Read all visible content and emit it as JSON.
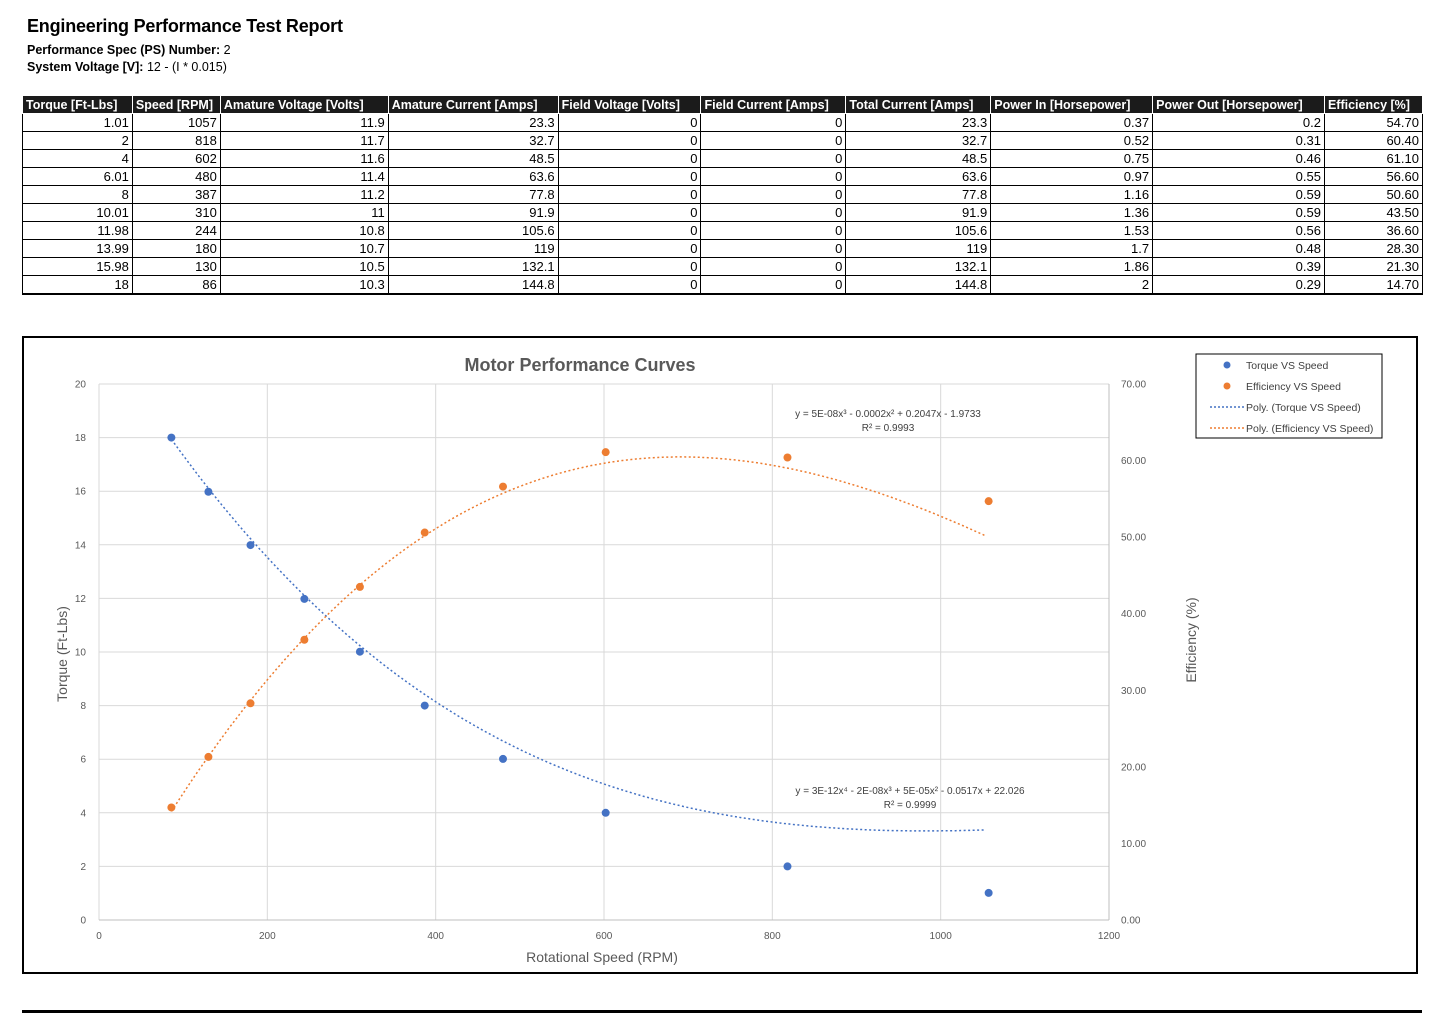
{
  "report": {
    "title": "Engineering Performance Test Report",
    "spec_label": "Performance Spec (PS) Number:",
    "spec_value": "2",
    "voltage_label": "System Voltage [V]:",
    "voltage_value": "12 - (I * 0.015)"
  },
  "table": {
    "headers": [
      "Torque [Ft-Lbs]",
      "Speed [RPM]",
      "Amature Voltage [Volts]",
      "Amature Current [Amps]",
      "Field Voltage [Volts]",
      "Field Current [Amps]",
      "Total Current [Amps]",
      "Power In [Horsepower]",
      "Power Out [Horsepower]",
      "Efficiency [%]"
    ],
    "rows": [
      [
        "1.01",
        "1057",
        "11.9",
        "23.3",
        "0",
        "0",
        "23.3",
        "0.37",
        "0.2",
        "54.70"
      ],
      [
        "2",
        "818",
        "11.7",
        "32.7",
        "0",
        "0",
        "32.7",
        "0.52",
        "0.31",
        "60.40"
      ],
      [
        "4",
        "602",
        "11.6",
        "48.5",
        "0",
        "0",
        "48.5",
        "0.75",
        "0.46",
        "61.10"
      ],
      [
        "6.01",
        "480",
        "11.4",
        "63.6",
        "0",
        "0",
        "63.6",
        "0.97",
        "0.55",
        "56.60"
      ],
      [
        "8",
        "387",
        "11.2",
        "77.8",
        "0",
        "0",
        "77.8",
        "1.16",
        "0.59",
        "50.60"
      ],
      [
        "10.01",
        "310",
        "11",
        "91.9",
        "0",
        "0",
        "91.9",
        "1.36",
        "0.59",
        "43.50"
      ],
      [
        "11.98",
        "244",
        "10.8",
        "105.6",
        "0",
        "0",
        "105.6",
        "1.53",
        "0.56",
        "36.60"
      ],
      [
        "13.99",
        "180",
        "10.7",
        "119",
        "0",
        "0",
        "119",
        "1.7",
        "0.48",
        "28.30"
      ],
      [
        "15.98",
        "130",
        "10.5",
        "132.1",
        "0",
        "0",
        "132.1",
        "1.86",
        "0.39",
        "21.30"
      ],
      [
        "18",
        "86",
        "10.3",
        "144.8",
        "0",
        "0",
        "144.8",
        "2",
        "0.29",
        "14.70"
      ]
    ]
  },
  "chart_data": {
    "type": "scatter",
    "title": "Motor Performance Curves",
    "xlabel": "Rotational Speed (RPM)",
    "ylabel": "Torque (Ft-Lbs)",
    "y2label": "Efficiency (%)",
    "xlim": [
      0,
      1200
    ],
    "ylim": [
      0,
      20
    ],
    "y2lim": [
      0,
      70
    ],
    "xticks": [
      0,
      200,
      400,
      600,
      800,
      1000,
      1200
    ],
    "yticks": [
      0,
      2,
      4,
      6,
      8,
      10,
      12,
      14,
      16,
      18,
      20
    ],
    "y2ticks": [
      "0.00",
      "10.00",
      "20.00",
      "30.00",
      "40.00",
      "50.00",
      "60.00",
      "70.00"
    ],
    "grid": true,
    "legend_position": "top-right",
    "series": [
      {
        "name": "Torque VS Speed",
        "axis": "left",
        "color": "#4472C4",
        "x": [
          1057,
          818,
          602,
          480,
          387,
          310,
          244,
          180,
          130,
          86
        ],
        "y": [
          1.01,
          2,
          4,
          6.01,
          8,
          10.01,
          11.98,
          13.99,
          15.98,
          18
        ]
      },
      {
        "name": "Efficiency VS Speed",
        "axis": "right",
        "color": "#ED7D31",
        "x": [
          1057,
          818,
          602,
          480,
          387,
          310,
          244,
          180,
          130,
          86
        ],
        "y": [
          54.7,
          60.4,
          61.1,
          56.6,
          50.6,
          43.5,
          36.6,
          28.3,
          21.3,
          14.7
        ]
      }
    ],
    "trendlines": [
      {
        "name": "Poly. (Torque VS Speed)",
        "color": "#4472C4",
        "equation": "y = 3E-12x⁴ - 2E-08x³ + 5E-05x² - 0.0517x + 22.026",
        "r2": "R² = 0.9999",
        "axis": "left"
      },
      {
        "name": "Poly. (Efficiency VS Speed)",
        "color": "#ED7D31",
        "equation": "y = 5E-08x³ - 0.0002x² + 0.2047x - 1.9733",
        "r2": "R² = 0.9993",
        "axis": "right"
      }
    ]
  }
}
